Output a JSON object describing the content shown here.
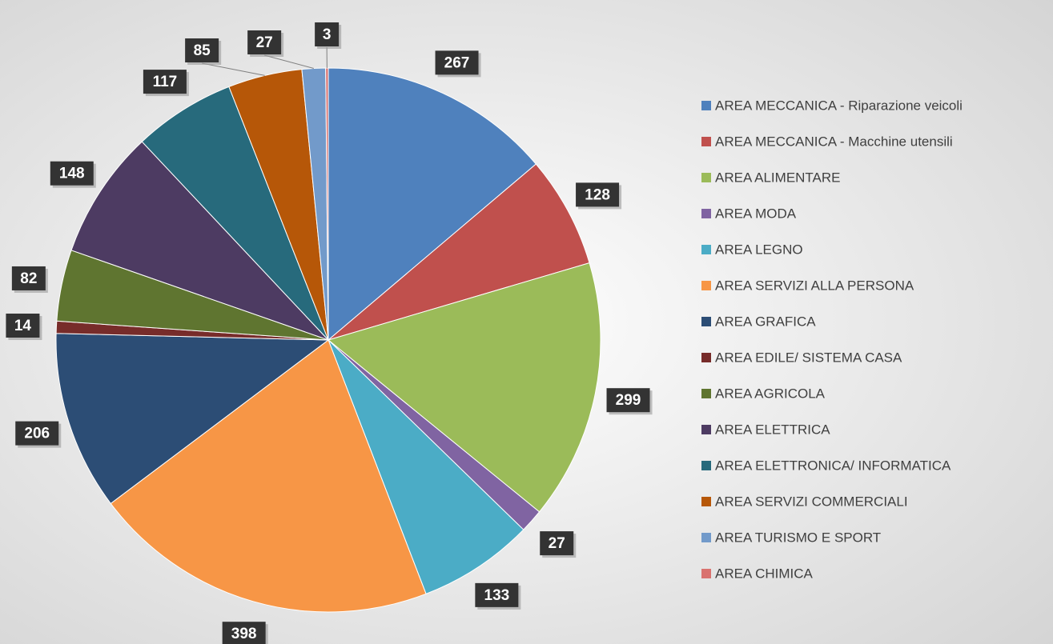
{
  "chart_data": {
    "type": "pie",
    "categories": [
      "AREA MECCANICA - Riparazione veicoli",
      "AREA  MECCANICA - Macchine utensili",
      "AREA ALIMENTARE",
      "AREA MODA",
      "AREA LEGNO",
      "AREA SERVIZI ALLA PERSONA",
      "AREA GRAFICA",
      "AREA EDILE/ SISTEMA CASA",
      "AREA AGRICOLA",
      "AREA ELETTRICA",
      "AREA ELETTRONICA/ INFORMATICA",
      "AREA SERVIZI COMMERCIALI",
      "AREA TURISMO E SPORT",
      "AREA CHIMICA"
    ],
    "values": [
      267,
      128,
      299,
      27,
      133,
      398,
      206,
      14,
      82,
      148,
      117,
      85,
      27,
      3
    ],
    "colors": [
      "#4f81bd",
      "#c0504d",
      "#9bbb59",
      "#8064a2",
      "#4bacc6",
      "#f79646",
      "#2c4d75",
      "#772c2a",
      "#5f7530",
      "#4d3b62",
      "#276a7c",
      "#b65708",
      "#729aca",
      "#d9726f"
    ],
    "legend": "right"
  }
}
